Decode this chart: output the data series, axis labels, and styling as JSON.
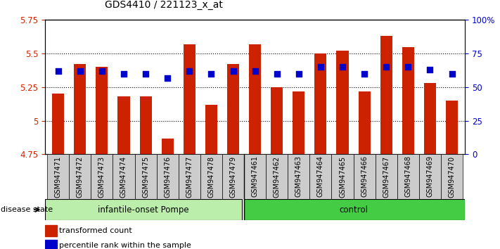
{
  "title": "GDS4410 / 221123_x_at",
  "samples": [
    "GSM947471",
    "GSM947472",
    "GSM947473",
    "GSM947474",
    "GSM947475",
    "GSM947476",
    "GSM947477",
    "GSM947478",
    "GSM947479",
    "GSM947461",
    "GSM947462",
    "GSM947463",
    "GSM947464",
    "GSM947465",
    "GSM947466",
    "GSM947467",
    "GSM947468",
    "GSM947469",
    "GSM947470"
  ],
  "red_values": [
    5.2,
    5.42,
    5.4,
    5.18,
    5.18,
    4.87,
    5.57,
    5.12,
    5.42,
    5.57,
    5.25,
    5.22,
    5.5,
    5.52,
    5.22,
    5.63,
    5.55,
    5.28,
    5.15
  ],
  "blue_values": [
    62,
    62,
    62,
    60,
    60,
    57,
    62,
    60,
    62,
    62,
    60,
    60,
    65,
    65,
    60,
    65,
    65,
    63,
    60
  ],
  "group1_label": "infantile-onset Pompe",
  "group2_label": "control",
  "group1_count": 9,
  "group2_count": 10,
  "ymin": 4.75,
  "ymax": 5.75,
  "yticks": [
    4.75,
    5.0,
    5.25,
    5.5,
    5.75
  ],
  "ytick_labels": [
    "4.75",
    "5",
    "5.25",
    "5.5",
    "5.75"
  ],
  "right_yticks": [
    0,
    25,
    50,
    75,
    100
  ],
  "right_ytick_labels": [
    "0",
    "25",
    "50",
    "75",
    "100%"
  ],
  "bar_color": "#cc2200",
  "dot_color": "#0000cc",
  "group1_bg": "#bbeeaa",
  "group2_bg": "#44cc44",
  "gray_bg": "#cccccc",
  "disease_state_label": "disease state",
  "legend1": "transformed count",
  "legend2": "percentile rank within the sample",
  "bar_width": 0.55,
  "dot_size": 35,
  "grid_color": "black",
  "grid_linestyle": ":"
}
